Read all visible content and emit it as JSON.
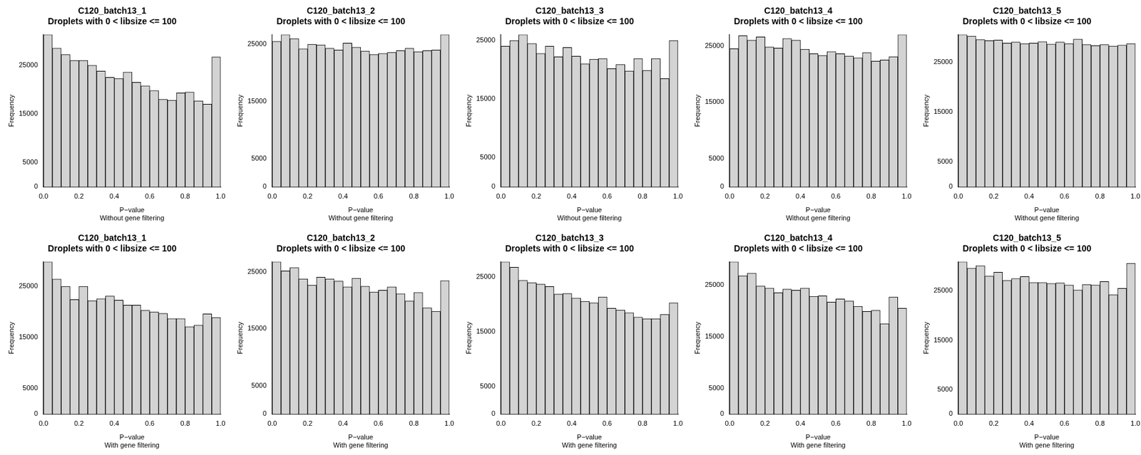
{
  "chart_data": [
    {
      "type": "histogram",
      "title": "C120_batch13_1",
      "subtitle": "Droplets with 0 < libsize <= 100",
      "x_label": "P−value",
      "caption": "Without gene filtering",
      "y_label": "Frequency",
      "bins": [
        0,
        0.05,
        0.1,
        0.15,
        0.2,
        0.25,
        0.3,
        0.35,
        0.4,
        0.45,
        0.5,
        0.55,
        0.6,
        0.65,
        0.7,
        0.75,
        0.8,
        0.85,
        0.9,
        0.95,
        1
      ],
      "values": [
        31300,
        28500,
        27200,
        26000,
        26000,
        25000,
        23800,
        22500,
        22300,
        23600,
        21500,
        20800,
        19800,
        18000,
        17800,
        19300,
        19500,
        17700,
        17000,
        26700
      ],
      "color": "#d3d3d3",
      "xlim": [
        0,
        1
      ],
      "xticks": [
        {
          "value": 0,
          "label": "0.0"
        },
        0.2,
        0.4,
        0.6,
        0.8,
        {
          "value": 1,
          "label": "1.0"
        }
      ],
      "ylim": [
        0,
        31300
      ],
      "yticks": [
        0,
        5000,
        15000,
        25000
      ],
      "grid": false
    },
    {
      "type": "histogram",
      "title": "C120_batch13_2",
      "subtitle": "Droplets with 0 < libsize <= 100",
      "x_label": "P−value",
      "caption": "Without gene filtering",
      "y_label": "Frequency",
      "bins": [
        0,
        0.05,
        0.1,
        0.15,
        0.2,
        0.25,
        0.3,
        0.35,
        0.4,
        0.45,
        0.5,
        0.55,
        0.6,
        0.65,
        0.7,
        0.75,
        0.8,
        0.85,
        0.9,
        0.95,
        1
      ],
      "values": [
        25500,
        26700,
        26000,
        24200,
        25000,
        24900,
        24300,
        24000,
        25200,
        24500,
        23800,
        23200,
        23400,
        23600,
        23900,
        24300,
        23700,
        23900,
        24000,
        26700
      ],
      "color": "#d3d3d3",
      "xlim": [
        0,
        1
      ],
      "xticks": [
        {
          "value": 0,
          "label": "0.0"
        },
        0.2,
        0.4,
        0.6,
        0.8,
        {
          "value": 1,
          "label": "1.0"
        }
      ],
      "ylim": [
        0,
        26700
      ],
      "yticks": [
        0,
        5000,
        15000,
        25000
      ],
      "grid": false
    },
    {
      "type": "histogram",
      "title": "C120_batch13_3",
      "subtitle": "Droplets with 0 < libsize <= 100",
      "x_label": "P−value",
      "caption": "Without gene filtering",
      "y_label": "Frequency",
      "bins": [
        0,
        0.05,
        0.1,
        0.15,
        0.2,
        0.25,
        0.3,
        0.35,
        0.4,
        0.45,
        0.5,
        0.55,
        0.6,
        0.65,
        0.7,
        0.75,
        0.8,
        0.85,
        0.9,
        0.95,
        1
      ],
      "values": [
        24000,
        25000,
        26000,
        24500,
        22800,
        24000,
        22200,
        23800,
        22300,
        21000,
        21800,
        21900,
        20200,
        20900,
        19800,
        21900,
        19900,
        21900,
        18500,
        25000
      ],
      "color": "#d3d3d3",
      "xlim": [
        0,
        1
      ],
      "xticks": [
        {
          "value": 0,
          "label": "0.0"
        },
        0.2,
        0.4,
        0.6,
        0.8,
        {
          "value": 1,
          "label": "1.0"
        }
      ],
      "ylim": [
        0,
        26000
      ],
      "yticks": [
        0,
        5000,
        15000,
        25000
      ],
      "grid": false
    },
    {
      "type": "histogram",
      "title": "C120_batch13_4",
      "subtitle": "Droplets with 0 < libsize <= 100",
      "x_label": "P−value",
      "caption": "Without gene filtering",
      "y_label": "Frequency",
      "bins": [
        0,
        0.05,
        0.1,
        0.15,
        0.2,
        0.25,
        0.3,
        0.35,
        0.4,
        0.45,
        0.5,
        0.55,
        0.6,
        0.65,
        0.7,
        0.75,
        0.8,
        0.85,
        0.9,
        0.95,
        1
      ],
      "values": [
        24500,
        26800,
        26000,
        26600,
        24800,
        24600,
        26300,
        26000,
        24400,
        23600,
        23300,
        24000,
        23600,
        23200,
        22900,
        23800,
        22300,
        22500,
        23100,
        27000
      ],
      "color": "#d3d3d3",
      "xlim": [
        0,
        1
      ],
      "xticks": [
        {
          "value": 0,
          "label": "0.0"
        },
        0.2,
        0.4,
        0.6,
        0.8,
        {
          "value": 1,
          "label": "1.0"
        }
      ],
      "ylim": [
        0,
        27000
      ],
      "yticks": [
        0,
        5000,
        15000,
        25000
      ],
      "grid": false
    },
    {
      "type": "histogram",
      "title": "C120_batch13_5",
      "subtitle": "Droplets with 0 < libsize <= 100",
      "x_label": "P−value",
      "caption": "Without gene filtering",
      "y_label": "Frequency",
      "bins": [
        0,
        0.05,
        0.1,
        0.15,
        0.2,
        0.25,
        0.3,
        0.35,
        0.4,
        0.45,
        0.5,
        0.55,
        0.6,
        0.65,
        0.7,
        0.75,
        0.8,
        0.85,
        0.9,
        0.95,
        1
      ],
      "values": [
        30500,
        30200,
        29500,
        29300,
        29400,
        28800,
        29000,
        28700,
        28800,
        29100,
        28600,
        29000,
        28700,
        29600,
        28500,
        28300,
        28500,
        28200,
        28400,
        28700
      ],
      "color": "#d3d3d3",
      "xlim": [
        0,
        1
      ],
      "xticks": [
        {
          "value": 0,
          "label": "0.0"
        },
        0.2,
        0.4,
        0.6,
        0.8,
        {
          "value": 1,
          "label": "1.0"
        }
      ],
      "ylim": [
        0,
        30500
      ],
      "yticks": [
        0,
        5000,
        15000,
        25000
      ],
      "grid": false
    },
    {
      "type": "histogram",
      "title": "C120_batch13_1",
      "subtitle": "Droplets with 0 < libsize <= 100",
      "x_label": "P−value",
      "caption": "With gene filtering",
      "y_label": "Frequency",
      "bins": [
        0,
        0.05,
        0.1,
        0.15,
        0.2,
        0.25,
        0.3,
        0.35,
        0.4,
        0.45,
        0.5,
        0.55,
        0.6,
        0.65,
        0.7,
        0.75,
        0.8,
        0.85,
        0.9,
        0.95,
        1
      ],
      "values": [
        29800,
        26400,
        25000,
        22400,
        25000,
        22200,
        22600,
        23100,
        22300,
        21300,
        21300,
        20300,
        20000,
        19700,
        18700,
        18700,
        17100,
        17400,
        19600,
        18900
      ],
      "color": "#d3d3d3",
      "xlim": [
        0,
        1
      ],
      "xticks": [
        {
          "value": 0,
          "label": "0.0"
        },
        0.2,
        0.4,
        0.6,
        0.8,
        {
          "value": 1,
          "label": "1.0"
        }
      ],
      "ylim": [
        0,
        29800
      ],
      "yticks": [
        0,
        5000,
        15000,
        25000
      ],
      "grid": false
    },
    {
      "type": "histogram",
      "title": "C120_batch13_2",
      "subtitle": "Droplets with 0 < libsize <= 100",
      "x_label": "P−value",
      "caption": "With gene filtering",
      "y_label": "Frequency",
      "bins": [
        0,
        0.05,
        0.1,
        0.15,
        0.2,
        0.25,
        0.3,
        0.35,
        0.4,
        0.45,
        0.5,
        0.55,
        0.6,
        0.65,
        0.7,
        0.75,
        0.8,
        0.85,
        0.9,
        0.95,
        1
      ],
      "values": [
        26800,
        25200,
        25800,
        23800,
        22700,
        24100,
        23800,
        23400,
        22400,
        23900,
        22500,
        21500,
        21800,
        22400,
        21200,
        19900,
        21400,
        18700,
        18100,
        23500
      ],
      "color": "#d3d3d3",
      "xlim": [
        0,
        1
      ],
      "xticks": [
        {
          "value": 0,
          "label": "0.0"
        },
        0.2,
        0.4,
        0.6,
        0.8,
        {
          "value": 1,
          "label": "1.0"
        }
      ],
      "ylim": [
        0,
        26800
      ],
      "yticks": [
        0,
        5000,
        15000,
        25000
      ],
      "grid": false
    },
    {
      "type": "histogram",
      "title": "C120_batch13_3",
      "subtitle": "Droplets with 0 < libsize <= 100",
      "x_label": "P−value",
      "caption": "With gene filtering",
      "y_label": "Frequency",
      "bins": [
        0,
        0.05,
        0.1,
        0.15,
        0.2,
        0.25,
        0.3,
        0.35,
        0.4,
        0.45,
        0.5,
        0.55,
        0.6,
        0.65,
        0.7,
        0.75,
        0.8,
        0.85,
        0.9,
        0.95,
        1
      ],
      "values": [
        27800,
        26800,
        24400,
        24000,
        23700,
        23300,
        21900,
        22000,
        21200,
        20600,
        20300,
        21400,
        19300,
        19000,
        18500,
        17700,
        17400,
        17400,
        18200,
        20300
      ],
      "color": "#d3d3d3",
      "xlim": [
        0,
        1
      ],
      "xticks": [
        {
          "value": 0,
          "label": "0.0"
        },
        0.2,
        0.4,
        0.6,
        0.8,
        {
          "value": 1,
          "label": "1.0"
        }
      ],
      "ylim": [
        0,
        27800
      ],
      "yticks": [
        0,
        5000,
        15000,
        25000
      ],
      "grid": false
    },
    {
      "type": "histogram",
      "title": "C120_batch13_4",
      "subtitle": "Droplets with 0 < libsize <= 100",
      "x_label": "P−value",
      "caption": "With gene filtering",
      "y_label": "Frequency",
      "bins": [
        0,
        0.05,
        0.1,
        0.15,
        0.2,
        0.25,
        0.3,
        0.35,
        0.4,
        0.45,
        0.5,
        0.55,
        0.6,
        0.65,
        0.7,
        0.75,
        0.8,
        0.85,
        0.9,
        0.95,
        1
      ],
      "values": [
        29500,
        26800,
        27300,
        24800,
        24400,
        23500,
        24200,
        24000,
        24400,
        22800,
        22900,
        21700,
        22300,
        21900,
        20900,
        19900,
        20100,
        17500,
        22700,
        20500
      ],
      "color": "#d3d3d3",
      "xlim": [
        0,
        1
      ],
      "xticks": [
        {
          "value": 0,
          "label": "0.0"
        },
        0.2,
        0.4,
        0.6,
        0.8,
        {
          "value": 1,
          "label": "1.0"
        }
      ],
      "ylim": [
        0,
        29500
      ],
      "yticks": [
        0,
        5000,
        15000,
        25000
      ],
      "grid": false
    },
    {
      "type": "histogram",
      "title": "C120_batch13_5",
      "subtitle": "Droplets with 0 < libsize <= 100",
      "x_label": "P−value",
      "caption": "With gene filtering",
      "y_label": "Frequency",
      "bins": [
        0,
        0.05,
        0.1,
        0.15,
        0.2,
        0.25,
        0.3,
        0.35,
        0.4,
        0.45,
        0.5,
        0.55,
        0.6,
        0.65,
        0.7,
        0.75,
        0.8,
        0.85,
        0.9,
        0.95,
        1
      ],
      "values": [
        30900,
        29600,
        30100,
        28000,
        28800,
        27100,
        27500,
        27900,
        26700,
        26700,
        26500,
        26600,
        26200,
        25200,
        26300,
        26200,
        26900,
        24200,
        25500,
        30600
      ],
      "color": "#d3d3d3",
      "xlim": [
        0,
        1
      ],
      "xticks": [
        {
          "value": 0,
          "label": "0.0"
        },
        0.2,
        0.4,
        0.6,
        0.8,
        {
          "value": 1,
          "label": "1.0"
        }
      ],
      "ylim": [
        0,
        30900
      ],
      "yticks": [
        0,
        5000,
        15000,
        25000
      ],
      "grid": false
    }
  ]
}
